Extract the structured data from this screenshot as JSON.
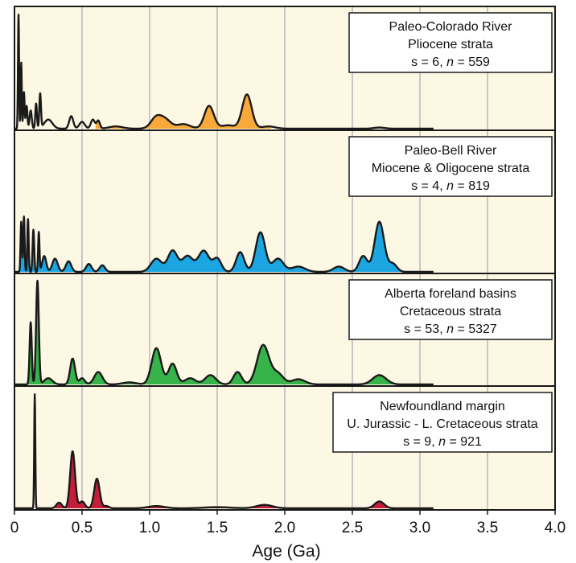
{
  "chart_data": {
    "type": "area",
    "stacked_panels": true,
    "grid": true,
    "background": "#fcf8e3",
    "gridline_color": "#c8c8c8",
    "xlabel": "Age (Ga)",
    "xlim": [
      0,
      4.0
    ],
    "xticks": [
      {
        "value": 0,
        "label": "0"
      },
      {
        "value": 0.5,
        "label": "0.5"
      },
      {
        "value": 1.0,
        "label": "1.0"
      },
      {
        "value": 1.5,
        "label": "1.5"
      },
      {
        "value": 2.0,
        "label": "2.0"
      },
      {
        "value": 2.5,
        "label": "2.5"
      },
      {
        "value": 3.0,
        "label": "3.0"
      },
      {
        "value": 3.5,
        "label": "3.5"
      },
      {
        "value": 4.0,
        "label": "4.0"
      }
    ],
    "legend_placement": "top-right of each panel",
    "panels": [
      {
        "name": "Paleo-Colorado River",
        "label_lines": [
          "Paleo-Colorado River",
          "Pliocene strata"
        ],
        "s": "6",
        "n": "559",
        "color": "#f9a93a",
        "ymax": 1.0,
        "fill_from": 0.6,
        "fill_to": 1.9,
        "peaks": [
          [
            0.03,
            1.0,
            0.004
          ],
          [
            0.05,
            0.58,
            0.004
          ],
          [
            0.07,
            0.32,
            0.005
          ],
          [
            0.09,
            0.2,
            0.006
          ],
          [
            0.12,
            0.16,
            0.008
          ],
          [
            0.16,
            0.22,
            0.006
          ],
          [
            0.19,
            0.3,
            0.006
          ],
          [
            0.25,
            0.08,
            0.03
          ],
          [
            0.42,
            0.11,
            0.015
          ],
          [
            0.5,
            0.06,
            0.02
          ],
          [
            0.58,
            0.08,
            0.015
          ],
          [
            0.62,
            0.07,
            0.012
          ],
          [
            0.75,
            0.02,
            0.05
          ],
          [
            1.05,
            0.1,
            0.04
          ],
          [
            1.12,
            0.07,
            0.04
          ],
          [
            1.25,
            0.04,
            0.05
          ],
          [
            1.44,
            0.2,
            0.035
          ],
          [
            1.58,
            0.03,
            0.05
          ],
          [
            1.72,
            0.3,
            0.035
          ],
          [
            1.88,
            0.02,
            0.05
          ],
          [
            2.7,
            0.01,
            0.04
          ]
        ]
      },
      {
        "name": "Paleo-Bell River",
        "label_lines": [
          "Paleo-Bell River",
          "Miocene & Oligocene strata"
        ],
        "s": "4",
        "n": "819",
        "color": "#1ba6e2",
        "ymax": 1.0,
        "fill_from": 0.0,
        "fill_to": 2.9,
        "peaks": [
          [
            0.05,
            0.38,
            0.005
          ],
          [
            0.07,
            0.42,
            0.005
          ],
          [
            0.1,
            0.4,
            0.005
          ],
          [
            0.14,
            0.32,
            0.006
          ],
          [
            0.18,
            0.3,
            0.005
          ],
          [
            0.22,
            0.12,
            0.015
          ],
          [
            0.3,
            0.1,
            0.02
          ],
          [
            0.4,
            0.08,
            0.02
          ],
          [
            0.55,
            0.06,
            0.02
          ],
          [
            0.65,
            0.05,
            0.02
          ],
          [
            1.05,
            0.1,
            0.04
          ],
          [
            1.17,
            0.16,
            0.035
          ],
          [
            1.28,
            0.12,
            0.04
          ],
          [
            1.4,
            0.16,
            0.04
          ],
          [
            1.5,
            0.1,
            0.03
          ],
          [
            1.67,
            0.15,
            0.03
          ],
          [
            1.82,
            0.3,
            0.035
          ],
          [
            1.95,
            0.1,
            0.04
          ],
          [
            2.1,
            0.04,
            0.05
          ],
          [
            2.4,
            0.04,
            0.04
          ],
          [
            2.58,
            0.12,
            0.03
          ],
          [
            2.7,
            0.38,
            0.035
          ],
          [
            2.8,
            0.06,
            0.03
          ]
        ]
      },
      {
        "name": "Alberta foreland basins",
        "label_lines": [
          "Alberta foreland basins",
          "Cretaceous strata"
        ],
        "s": "53",
        "n": "5327",
        "color": "#37b34a",
        "ymax": 1.0,
        "fill_from": 0.0,
        "fill_to": 2.9,
        "peaks": [
          [
            0.12,
            0.6,
            0.008
          ],
          [
            0.17,
            1.0,
            0.01
          ],
          [
            0.25,
            0.06,
            0.03
          ],
          [
            0.43,
            0.25,
            0.018
          ],
          [
            0.5,
            0.06,
            0.02
          ],
          [
            0.62,
            0.12,
            0.03
          ],
          [
            0.85,
            0.02,
            0.05
          ],
          [
            1.05,
            0.35,
            0.035
          ],
          [
            1.17,
            0.2,
            0.03
          ],
          [
            1.3,
            0.06,
            0.04
          ],
          [
            1.45,
            0.09,
            0.04
          ],
          [
            1.65,
            0.12,
            0.03
          ],
          [
            1.84,
            0.38,
            0.045
          ],
          [
            1.95,
            0.1,
            0.04
          ],
          [
            2.1,
            0.05,
            0.05
          ],
          [
            2.7,
            0.09,
            0.05
          ]
        ]
      },
      {
        "name": "Newfoundland margin",
        "label_lines": [
          "Newfoundland margin",
          "U. Jurassic - L. Cretaceous strata"
        ],
        "s": "9",
        "n": "921",
        "color": "#c41e3a",
        "ymax": 1.0,
        "fill_from": 0.3,
        "fill_to": 2.9,
        "peaks": [
          [
            0.15,
            1.0,
            0.004
          ],
          [
            0.33,
            0.05,
            0.02
          ],
          [
            0.43,
            0.5,
            0.018
          ],
          [
            0.5,
            0.06,
            0.02
          ],
          [
            0.61,
            0.26,
            0.02
          ],
          [
            0.68,
            0.02,
            0.02
          ],
          [
            1.05,
            0.02,
            0.06
          ],
          [
            1.5,
            0.01,
            0.1
          ],
          [
            1.85,
            0.03,
            0.06
          ],
          [
            2.7,
            0.06,
            0.035
          ]
        ]
      }
    ]
  }
}
